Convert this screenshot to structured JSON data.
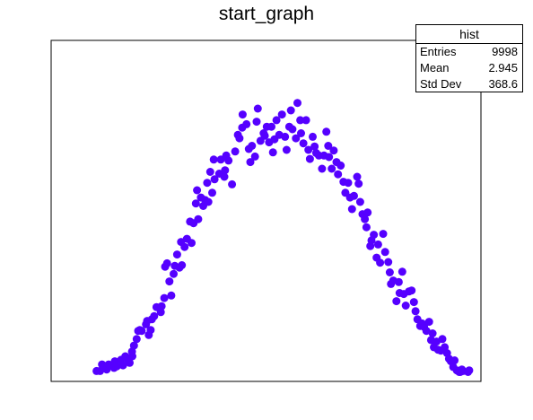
{
  "colors": {
    "marker": "#5500ff",
    "frame": "#000000",
    "background": "#ffffff"
  },
  "stats": {
    "title": "hist",
    "rows": [
      {
        "label": "Entries",
        "value": "9998"
      },
      {
        "label": "Mean",
        "value": "2.945"
      },
      {
        "label": "Std Dev",
        "value": "368.6"
      }
    ]
  },
  "chart_data": {
    "type": "scatter",
    "title": "start_graph",
    "xlabel": "",
    "ylabel": "",
    "xlim": [
      0,
      100
    ],
    "ylim": [
      0,
      100
    ],
    "grid": false,
    "legend": "top-right",
    "axis_ticks_shown": false,
    "series": [
      {
        "points": [
          [
            5.9,
            1.6
          ],
          [
            6.8,
            1.6
          ],
          [
            7.3,
            3.7
          ],
          [
            7.9,
            2.9
          ],
          [
            8.5,
            2.1
          ],
          [
            9.0,
            3.7
          ],
          [
            10.4,
            2.6
          ],
          [
            10.6,
            4.7
          ],
          [
            11.1,
            3.1
          ],
          [
            12.2,
            5.2
          ],
          [
            12.7,
            3.4
          ],
          [
            13.3,
            6.3
          ],
          [
            14.0,
            5.2
          ],
          [
            14.4,
            4.2
          ],
          [
            15.1,
            6.3
          ],
          [
            15.0,
            7.8
          ],
          [
            15.5,
            9.7
          ],
          [
            16.2,
            11.8
          ],
          [
            16.6,
            14.4
          ],
          [
            17.0,
            14.7
          ],
          [
            17.5,
            14.4
          ],
          [
            18.6,
            16.5
          ],
          [
            18.9,
            17.6
          ],
          [
            19.8,
            14.7
          ],
          [
            19.3,
            13.1
          ],
          [
            20.1,
            18.1
          ],
          [
            20.7,
            19.1
          ],
          [
            21.3,
            22.0
          ],
          [
            22.4,
            20.4
          ],
          [
            22.6,
            22.3
          ],
          [
            23.3,
            24.9
          ],
          [
            23.5,
            34.9
          ],
          [
            24.0,
            36.0
          ],
          [
            24.6,
            30.2
          ],
          [
            25.1,
            25.7
          ],
          [
            25.7,
            32.6
          ],
          [
            26.0,
            35.2
          ],
          [
            26.6,
            38.8
          ],
          [
            27.2,
            34.6
          ],
          [
            27.8,
            35.4
          ],
          [
            27.6,
            42.8
          ],
          [
            28.5,
            41.2
          ],
          [
            29.1,
            43.8
          ],
          [
            29.9,
            49.3
          ],
          [
            30.3,
            42.5
          ],
          [
            30.8,
            48.8
          ],
          [
            31.4,
            55.1
          ],
          [
            31.7,
            59.3
          ],
          [
            32.0,
            50.1
          ],
          [
            32.7,
            57.0
          ],
          [
            33.3,
            54.3
          ],
          [
            33.8,
            56.2
          ],
          [
            34.3,
            61.7
          ],
          [
            34.6,
            55.6
          ],
          [
            35.1,
            65.2
          ],
          [
            35.6,
            58.5
          ],
          [
            36.0,
            69.1
          ],
          [
            36.2,
            62.8
          ],
          [
            37.4,
            64.6
          ],
          [
            37.8,
            69.1
          ],
          [
            38.7,
            63.6
          ],
          [
            38.9,
            65.7
          ],
          [
            39.2,
            70.4
          ],
          [
            39.8,
            68.8
          ],
          [
            40.7,
            61.2
          ],
          [
            41.5,
            71.7
          ],
          [
            42.2,
            77.0
          ],
          [
            42.6,
            75.9
          ],
          [
            43.3,
            79.3
          ],
          [
            43.4,
            83.5
          ],
          [
            44.4,
            80.4
          ],
          [
            45.0,
            72.5
          ],
          [
            45.4,
            68.3
          ],
          [
            45.8,
            73.5
          ],
          [
            46.6,
            70.1
          ],
          [
            47.0,
            81.2
          ],
          [
            47.3,
            85.4
          ],
          [
            48.0,
            75.1
          ],
          [
            48.8,
            77.5
          ],
          [
            49.1,
            76.7
          ],
          [
            49.6,
            79.6
          ],
          [
            50.2,
            74.6
          ],
          [
            50.8,
            79.6
          ],
          [
            51.2,
            71.4
          ],
          [
            51.6,
            75.6
          ],
          [
            52.1,
            81.7
          ],
          [
            52.8,
            77.0
          ],
          [
            53.5,
            83.5
          ],
          [
            54.3,
            76.4
          ],
          [
            54.7,
            72.2
          ],
          [
            55.4,
            79.6
          ],
          [
            55.8,
            84.8
          ],
          [
            56.2,
            78.8
          ],
          [
            57.1,
            75.9
          ],
          [
            57.5,
            87.2
          ],
          [
            58.2,
            81.7
          ],
          [
            58.4,
            77.5
          ],
          [
            59.0,
            74.3
          ],
          [
            59.7,
            81.7
          ],
          [
            60.3,
            72.2
          ],
          [
            60.7,
            69.3
          ],
          [
            61.4,
            76.4
          ],
          [
            61.9,
            73.3
          ],
          [
            62.3,
            71.2
          ],
          [
            63.0,
            70.4
          ],
          [
            63.8,
            66.2
          ],
          [
            64.3,
            70.4
          ],
          [
            64.9,
            78.0
          ],
          [
            65.4,
            73.5
          ],
          [
            65.6,
            69.9
          ],
          [
            66.3,
            66.2
          ],
          [
            66.8,
            72.0
          ],
          [
            67.5,
            68.3
          ],
          [
            67.9,
            64.4
          ],
          [
            68.6,
            67.2
          ],
          [
            69.3,
            62.0
          ],
          [
            69.8,
            58.5
          ],
          [
            70.5,
            61.7
          ],
          [
            71.0,
            57.0
          ],
          [
            71.5,
            53.3
          ],
          [
            72.0,
            57.5
          ],
          [
            72.8,
            63.6
          ],
          [
            73.2,
            61.4
          ],
          [
            73.6,
            55.6
          ],
          [
            74.2,
            51.7
          ],
          [
            74.8,
            50.1
          ],
          [
            75.2,
            47.5
          ],
          [
            75.5,
            52.2
          ],
          [
            76.2,
            41.5
          ],
          [
            76.5,
            43.3
          ],
          [
            77.1,
            45.1
          ],
          [
            77.8,
            37.8
          ],
          [
            78.2,
            42.0
          ],
          [
            78.7,
            36.2
          ],
          [
            79.5,
            45.4
          ],
          [
            80.0,
            39.6
          ],
          [
            80.8,
            36.4
          ],
          [
            81.2,
            33.1
          ],
          [
            81.5,
            29.4
          ],
          [
            82.1,
            30.5
          ],
          [
            82.9,
            23.9
          ],
          [
            83.5,
            30.0
          ],
          [
            83.7,
            26.5
          ],
          [
            84.4,
            33.3
          ],
          [
            84.8,
            26.2
          ],
          [
            85.3,
            22.5
          ],
          [
            86.1,
            27.0
          ],
          [
            86.8,
            27.3
          ],
          [
            87.4,
            23.6
          ],
          [
            87.8,
            20.7
          ],
          [
            88.3,
            18.1
          ],
          [
            89.0,
            16.0
          ],
          [
            89.5,
            16.8
          ],
          [
            90.0,
            15.7
          ],
          [
            90.6,
            14.4
          ],
          [
            91.3,
            17.3
          ],
          [
            91.8,
            11.5
          ],
          [
            92.2,
            13.6
          ],
          [
            92.5,
            9.2
          ],
          [
            93.2,
            11.0
          ],
          [
            93.6,
            8.4
          ],
          [
            94.3,
            8.1
          ],
          [
            94.7,
            11.8
          ],
          [
            95.3,
            9.2
          ],
          [
            95.9,
            7.3
          ],
          [
            96.4,
            5.5
          ],
          [
            96.9,
            4.7
          ],
          [
            97.5,
            2.9
          ],
          [
            97.8,
            5.0
          ],
          [
            98.4,
            1.8
          ],
          [
            99.0,
            1.3
          ],
          [
            99.3,
            1.3
          ],
          [
            99.7,
            2.1
          ],
          [
            100.0,
            1.6
          ],
          [
            101.6,
            1.8
          ],
          [
            101.3,
            1.3
          ]
        ]
      }
    ]
  }
}
